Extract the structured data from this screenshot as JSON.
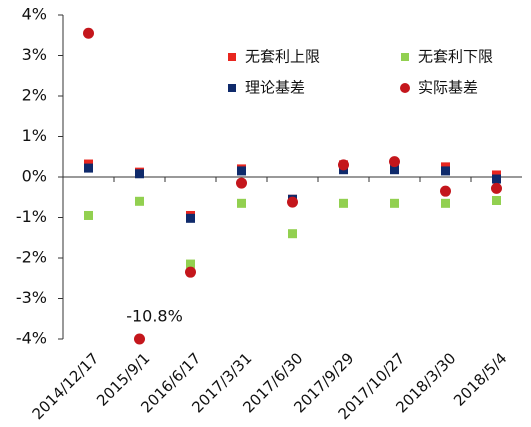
{
  "chart_data": {
    "type": "scatter",
    "categories": [
      "2014/12/17",
      "2015/9/1",
      "2016/6/17",
      "2017/3/31",
      "2017/6/30",
      "2017/9/29",
      "2017/10/27",
      "2018/3/30",
      "2018/5/4"
    ],
    "ylim": [
      -4,
      4
    ],
    "yticks": [
      {
        "value": -4,
        "label": "-4%"
      },
      {
        "value": -3,
        "label": "-3%"
      },
      {
        "value": -2,
        "label": "-2%"
      },
      {
        "value": -1,
        "label": "-1%"
      },
      {
        "value": 0,
        "label": "0%"
      },
      {
        "value": 1,
        "label": "1%"
      },
      {
        "value": 2,
        "label": "2%"
      },
      {
        "value": 3,
        "label": "3%"
      },
      {
        "value": 4,
        "label": "4%"
      }
    ],
    "grid": false,
    "legend": "top-right",
    "series": [
      {
        "name": "无套利上限",
        "color": "#e8261f",
        "marker": "square",
        "values": [
          0.32,
          0.12,
          -0.95,
          0.2,
          -0.55,
          0.3,
          0.35,
          0.25,
          0.05
        ]
      },
      {
        "name": "无套利下限",
        "color": "#92d050",
        "marker": "square",
        "values": [
          -0.95,
          -0.6,
          -2.15,
          -0.65,
          -1.4,
          -0.65,
          -0.65,
          -0.65,
          -0.58
        ]
      },
      {
        "name": "理论基差",
        "color": "#0f2a6b",
        "marker": "square",
        "values": [
          0.22,
          0.08,
          -1.02,
          0.15,
          -0.55,
          0.18,
          0.18,
          0.15,
          -0.05
        ]
      },
      {
        "name": "实际基差",
        "color": "#c4161c",
        "marker": "circle",
        "values": [
          3.55,
          -10.8,
          -2.35,
          -0.15,
          -0.62,
          0.3,
          0.38,
          -0.35,
          -0.28
        ],
        "value_labels": [
          null,
          "-10.8%",
          null,
          null,
          null,
          null,
          null,
          null,
          null
        ]
      }
    ]
  }
}
